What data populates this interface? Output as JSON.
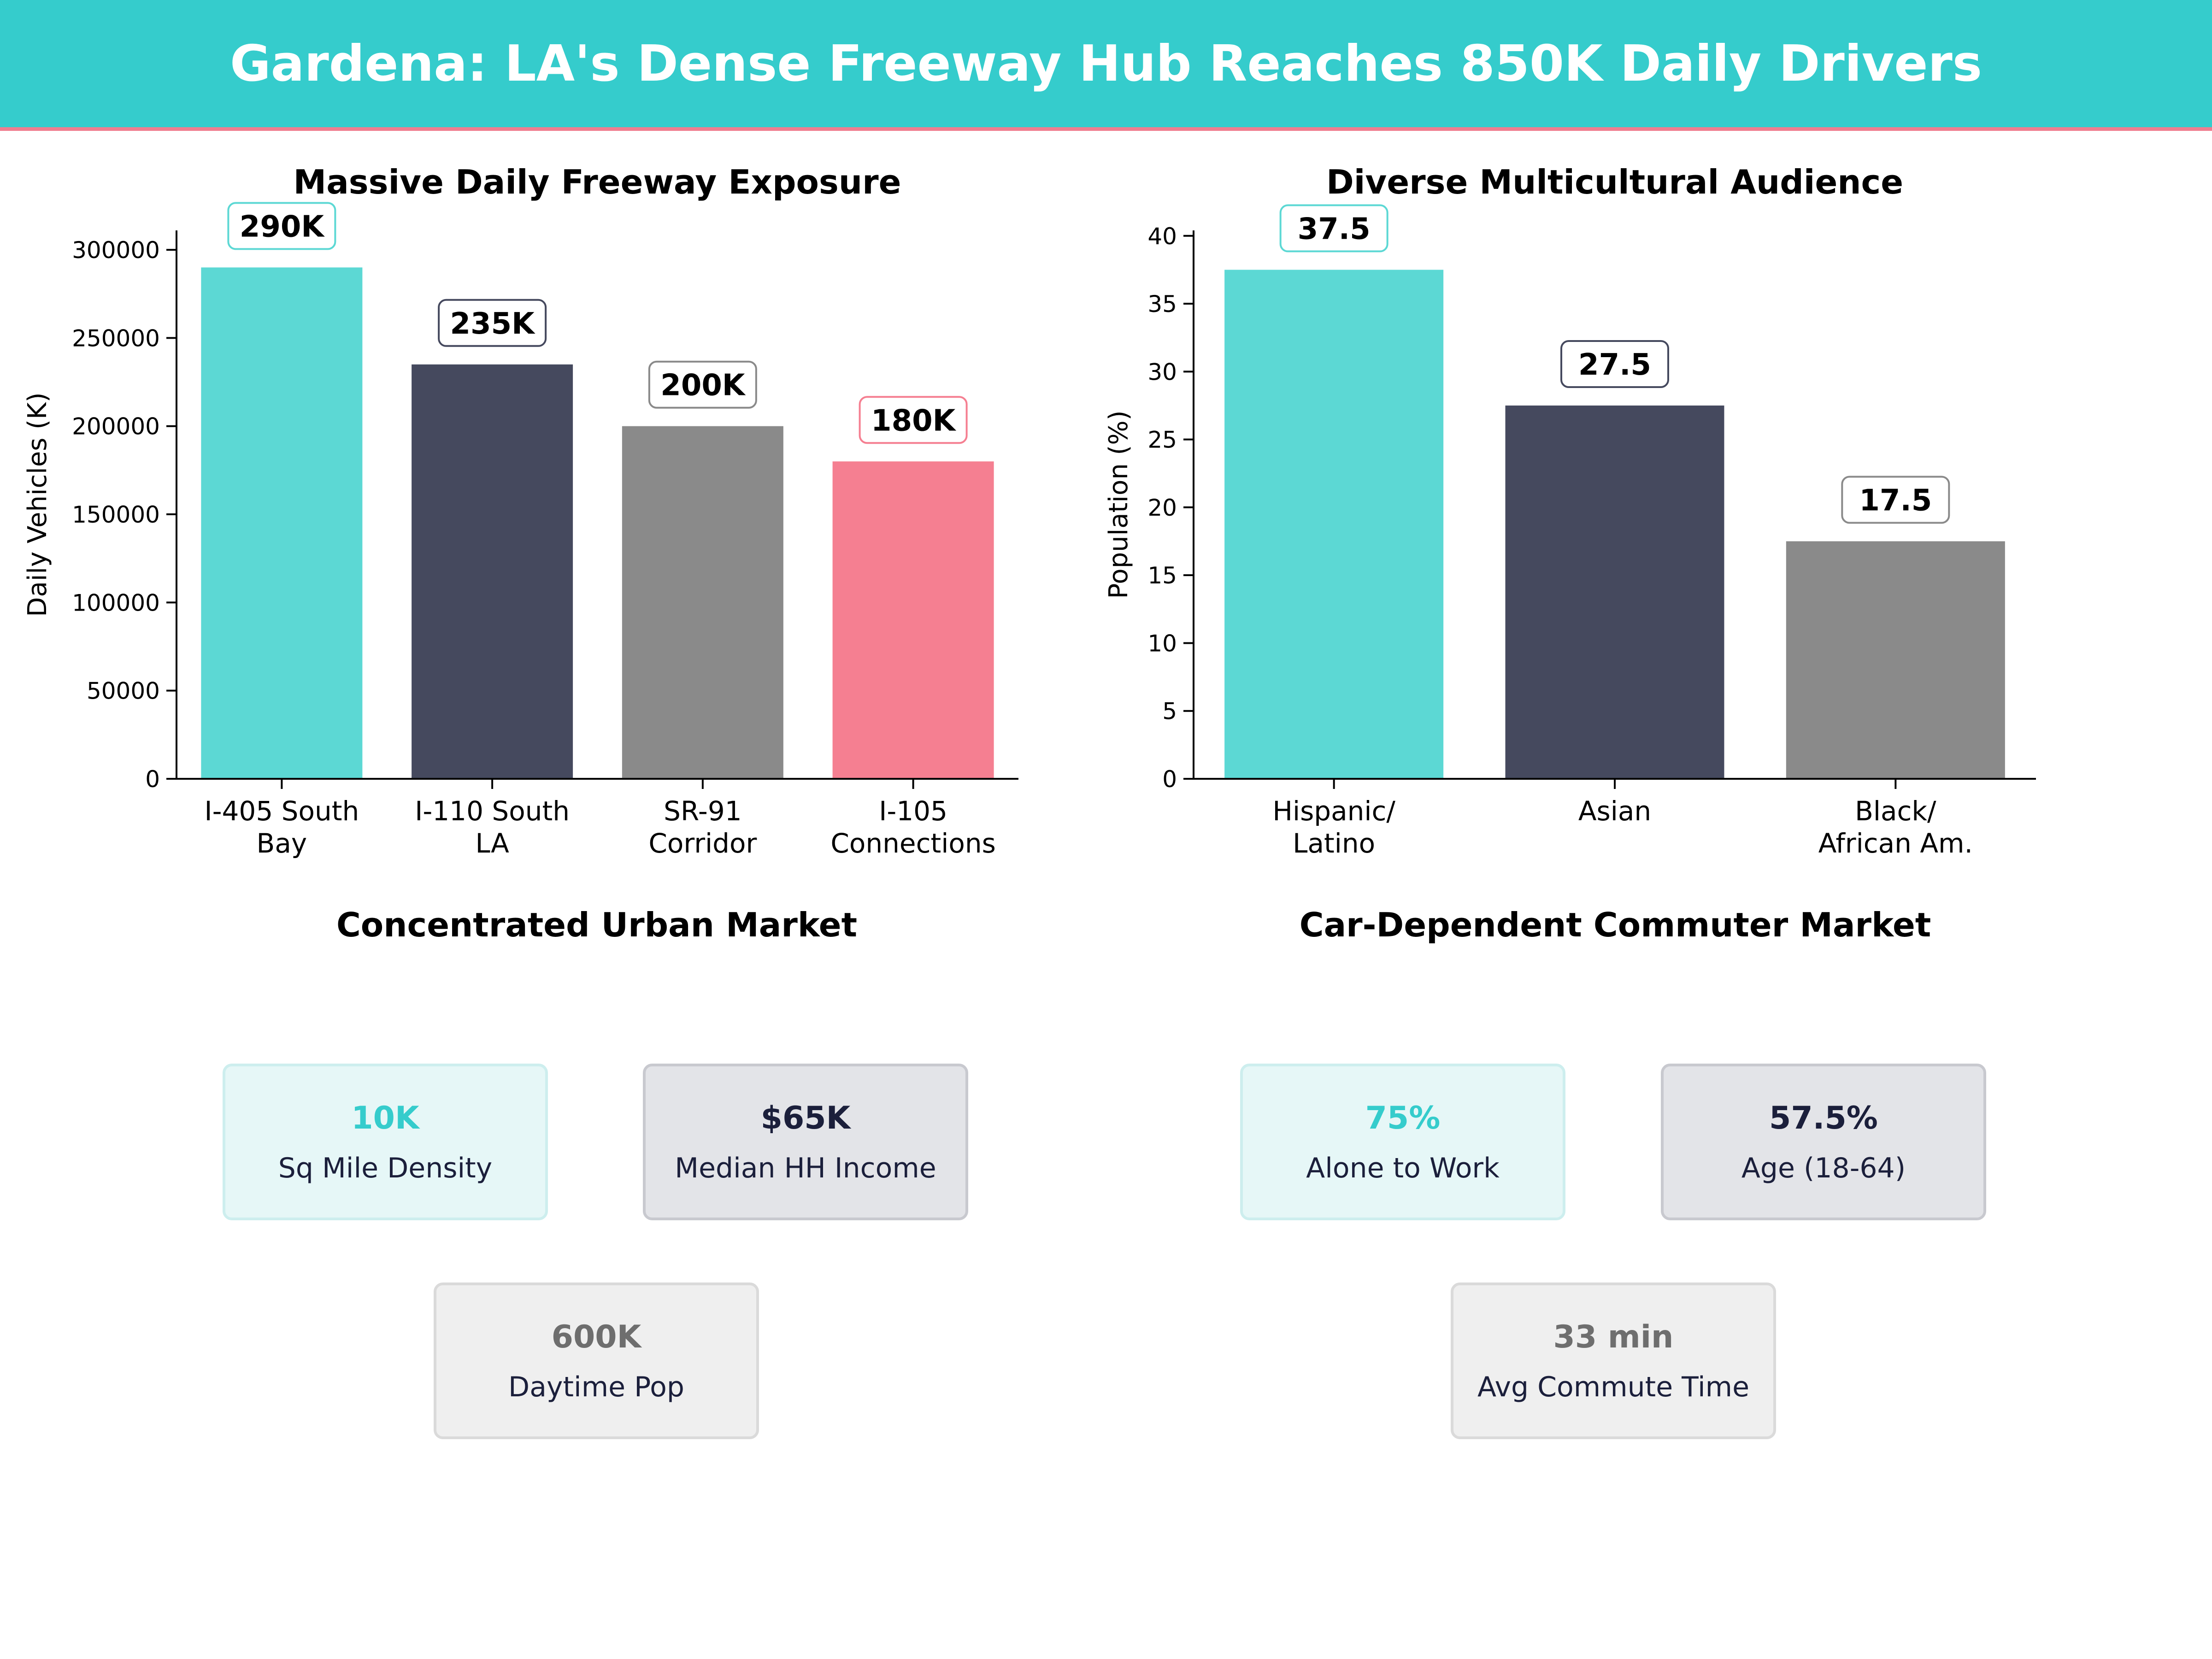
{
  "title": "Gardena: LA's Dense Freeway Hub Reaches 850K Daily Drivers",
  "colors": {
    "banner": "#35cccc",
    "accent_line": "#f07d8f",
    "teal": "#5cd8d4",
    "navy": "#45495e",
    "gray": "#8a8a8a",
    "pink": "#f57f91"
  },
  "chart_data": [
    {
      "type": "bar",
      "title": "Massive Daily Freeway Exposure",
      "xlabel": "",
      "ylabel": "Daily Vehicles (K)",
      "categories": [
        "I-405 South\nBay",
        "I-110 South\nLA",
        "SR-91\nCorridor",
        "I-105\nConnections"
      ],
      "values": [
        290000,
        235000,
        200000,
        180000
      ],
      "data_labels": [
        "290K",
        "235K",
        "200K",
        "180K"
      ],
      "bar_colors": [
        "#5cd8d4",
        "#45495e",
        "#8a8a8a",
        "#f57f91"
      ],
      "label_border_colors": [
        "#5cd8d4",
        "#45495e",
        "#8a8a8a",
        "#f57f91"
      ],
      "yticks": [
        0,
        50000,
        100000,
        150000,
        200000,
        250000,
        300000
      ],
      "ylim": [
        0,
        311000
      ]
    },
    {
      "type": "bar",
      "title": "Diverse Multicultural Audience",
      "xlabel": "",
      "ylabel": "Population (%)",
      "categories": [
        "Hispanic/\nLatino",
        "Asian",
        "Black/\nAfrican Am."
      ],
      "values": [
        37.5,
        27.5,
        17.5
      ],
      "data_labels": [
        "37.5",
        "27.5",
        "17.5"
      ],
      "bar_colors": [
        "#5cd8d4",
        "#45495e",
        "#8a8a8a"
      ],
      "label_border_colors": [
        "#5cd8d4",
        "#45495e",
        "#8a8a8a"
      ],
      "yticks": [
        0,
        5,
        10,
        15,
        20,
        25,
        30,
        35,
        40
      ],
      "ylim": [
        0,
        40.4
      ]
    }
  ],
  "panels": {
    "urban": {
      "title": "Concentrated Urban Market",
      "cards": [
        {
          "value": "10K",
          "label": "Sq Mile Density"
        },
        {
          "value": "$65K",
          "label": "Median HH Income"
        },
        {
          "value": "600K",
          "label": "Daytime Pop"
        }
      ]
    },
    "commuter": {
      "title": "Car-Dependent Commuter Market",
      "cards": [
        {
          "value": "75%",
          "label": "Alone to Work"
        },
        {
          "value": "57.5%",
          "label": "Age (18-64)"
        },
        {
          "value": "33 min",
          "label": "Avg Commute Time"
        }
      ]
    }
  }
}
